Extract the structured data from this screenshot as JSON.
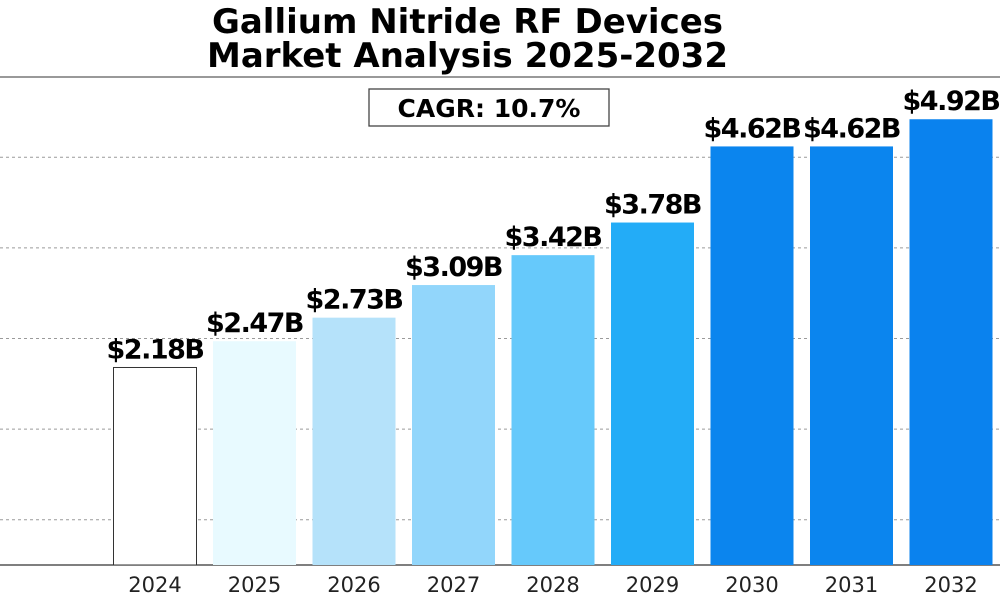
{
  "chart_data": {
    "type": "bar",
    "title": [
      "Gallium Nitride RF Devices",
      "Market Analysis 2025-2032"
    ],
    "annotation": "CAGR: 10.7%",
    "categories": [
      "2024",
      "2025",
      "2026",
      "2027",
      "2028",
      "2029",
      "2030",
      "2031",
      "2032"
    ],
    "values": [
      2.18,
      2.47,
      2.73,
      3.09,
      3.42,
      3.78,
      4.62,
      4.62,
      4.92
    ],
    "data_labels": [
      "$2.18B",
      "$2.47B",
      "$2.73B",
      "$3.09B",
      "$3.42B",
      "$3.78B",
      "$4.62B",
      "$4.62B",
      "$4.92B"
    ],
    "bar_colors": [
      "#ffffff",
      "#e8faff",
      "#b5e2fa",
      "#92d6fb",
      "#66c9fb",
      "#23acf7",
      "#0b85ee",
      "#0b85ee",
      "#0a82ee"
    ],
    "value_units": "$B",
    "xlabel": "",
    "ylabel": "",
    "grid": "horizontal-dashed",
    "legend": "none"
  }
}
